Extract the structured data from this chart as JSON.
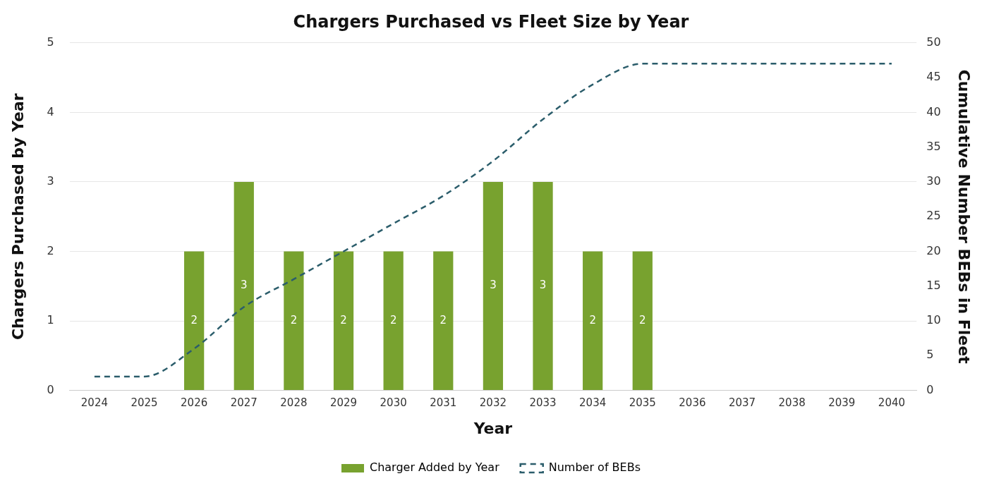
{
  "chart_data": {
    "type": "bar",
    "title": "Chargers Purchased vs Fleet Size by Year",
    "xlabel": "Year",
    "ylabel": "Chargers Purchased by Year",
    "y2label": "Cumulative Number BEBs in Fleet",
    "categories": [
      "2024",
      "2025",
      "2026",
      "2027",
      "2028",
      "2029",
      "2030",
      "2031",
      "2032",
      "2033",
      "2034",
      "2035",
      "2036",
      "2037",
      "2038",
      "2039",
      "2040"
    ],
    "series": [
      {
        "name": "Charger Added by Year",
        "color": "#78a22f",
        "values": [
          null,
          null,
          2,
          3,
          2,
          2,
          2,
          2,
          3,
          3,
          2,
          2,
          null,
          null,
          null,
          null,
          null
        ],
        "value_labels": [
          null,
          null,
          "2",
          "3",
          "2",
          "2",
          "2",
          "2",
          "3",
          "3",
          "2",
          "2",
          null,
          null,
          null,
          null,
          null
        ]
      },
      {
        "name": "Number of BEBs",
        "type": "line",
        "axis": "y2",
        "color": "#2b5d6b",
        "line_style": "dashed",
        "marker": "none",
        "values": [
          2,
          2,
          6,
          12,
          16,
          20,
          24,
          28,
          33,
          39,
          44,
          47,
          47,
          47,
          47,
          47,
          47
        ]
      }
    ],
    "ylim": [
      0,
      5
    ],
    "yticks": [
      0,
      1,
      2,
      3,
      4,
      5
    ],
    "y2lim": [
      0,
      50
    ],
    "y2ticks": [
      0,
      5,
      10,
      15,
      20,
      25,
      30,
      35,
      40,
      45,
      50
    ],
    "grid": "y",
    "legend": "bottom"
  }
}
